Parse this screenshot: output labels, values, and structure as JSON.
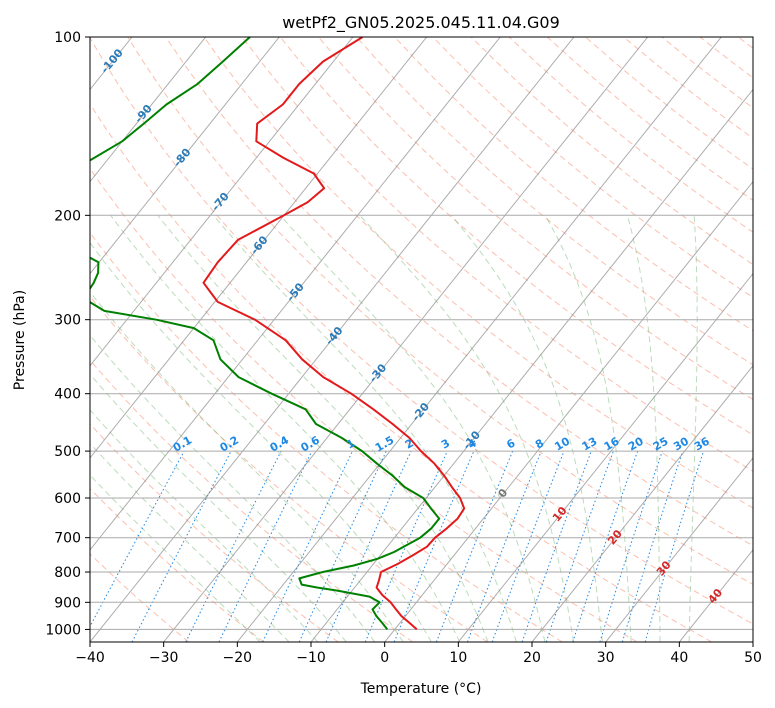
{
  "chart_data": {
    "type": "line",
    "title": "wetPf2_GN05.2025.045.11.04.G09",
    "xlabel": "Temperature (°C)",
    "ylabel": "Pressure (hPa)",
    "xlim": [
      -40,
      50
    ],
    "ylim": [
      1050,
      100
    ],
    "y_scale": "log",
    "x_ticks": [
      -40,
      -30,
      -20,
      -10,
      0,
      10,
      20,
      30,
      40,
      50
    ],
    "y_ticks": [
      1000,
      900,
      800,
      700,
      600,
      500,
      400,
      300,
      200,
      100
    ],
    "grid": true,
    "isotherm_labels": [
      "-100",
      "-90",
      "-80",
      "-70",
      "-60",
      "-50",
      "-40",
      "-30",
      "-20",
      "-10",
      "0",
      "10",
      "20",
      "30",
      "40"
    ],
    "mixing_ratio_labels": [
      "0.1",
      "0.2",
      "0.4",
      "0.6",
      "1",
      "1.5",
      "2",
      "3",
      "4",
      "6",
      "8",
      "10",
      "13",
      "16",
      "20",
      "25",
      "30",
      "36"
    ],
    "colors": {
      "temperature": "#e31a1c",
      "dewpoint": "#008000",
      "isotherm": "#888888",
      "dry_adiabat": "#fa8060",
      "moist_adiabat": "#6ab06a",
      "mixing_ratio": "#1e88e5",
      "isotherm_label": "#2b7bb9",
      "warm_label": "#d62728"
    },
    "series": [
      {
        "key": "temperature",
        "p": [
          1000,
          975,
          950,
          925,
          900,
          875,
          850,
          825,
          800,
          775,
          750,
          725,
          700,
          675,
          650,
          625,
          600,
          575,
          550,
          525,
          500,
          475,
          450,
          425,
          400,
          375,
          350,
          325,
          300,
          280,
          260,
          240,
          220,
          200,
          190,
          180,
          170,
          160,
          150,
          140,
          130,
          120,
          110,
          100
        ],
        "t": [
          3.0,
          1.3,
          -0.5,
          -2.0,
          -3.5,
          -5.4,
          -7.0,
          -7.5,
          -8.1,
          -6.7,
          -5.6,
          -4.6,
          -4.5,
          -3.9,
          -3.5,
          -3.7,
          -5.4,
          -7.7,
          -10.0,
          -12.6,
          -15.8,
          -18.8,
          -22.6,
          -26.8,
          -31.5,
          -37.1,
          -41.9,
          -46.2,
          -52.6,
          -59.6,
          -63.6,
          -63.9,
          -63.6,
          -60.0,
          -58.2,
          -57.5,
          -60.5,
          -66.3,
          -71.8,
          -73.6,
          -72.2,
          -72.2,
          -71.4,
          -68.7
        ]
      },
      {
        "key": "dewpoint",
        "p": [
          1000,
          975,
          950,
          925,
          900,
          880,
          860,
          850,
          840,
          820,
          800,
          780,
          760,
          740,
          720,
          700,
          675,
          650,
          625,
          600,
          575,
          550,
          525,
          500,
          475,
          450,
          425,
          400,
          375,
          350,
          325,
          310,
          300,
          290,
          280,
          270,
          260,
          250,
          240,
          230,
          220,
          210,
          200,
          195,
          190,
          185,
          180,
          175,
          170,
          160,
          150,
          140,
          130,
          120,
          110,
          100
        ],
        "td": [
          -1.0,
          -2.4,
          -3.9,
          -5.2,
          -5.0,
          -7.0,
          -12.0,
          -15.0,
          -17.5,
          -18.5,
          -16.0,
          -12.5,
          -10.0,
          -8.5,
          -7.5,
          -6.5,
          -6.0,
          -6.0,
          -8.2,
          -10.4,
          -14.1,
          -17.0,
          -20.4,
          -23.8,
          -28.0,
          -33.0,
          -36.0,
          -42.3,
          -48.6,
          -53.0,
          -56.0,
          -60.0,
          -66.0,
          -74.0,
          -77.0,
          -78.3,
          -78.5,
          -79.0,
          -80.1,
          -84.0,
          -86.7,
          -89.0,
          -92.0,
          -95.0,
          -98.7,
          -99.5,
          -98.0,
          -96.0,
          -94.0,
          -92.0,
          -90.0,
          -89.0,
          -88.0,
          -86.0,
          -85.0,
          -84.0
        ]
      }
    ]
  }
}
